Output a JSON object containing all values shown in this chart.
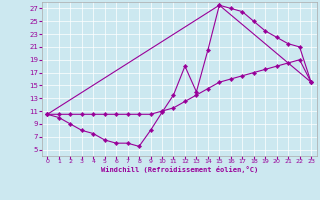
{
  "xlabel": "Windchill (Refroidissement éolien,°C)",
  "bg_color": "#cce8f0",
  "line_color": "#990099",
  "marker": "D",
  "markersize": 2.2,
  "linewidth": 0.8,
  "xlim": [
    -0.5,
    23.5
  ],
  "ylim": [
    4,
    28
  ],
  "xticks": [
    0,
    1,
    2,
    3,
    4,
    5,
    6,
    7,
    8,
    9,
    10,
    11,
    12,
    13,
    14,
    15,
    16,
    17,
    18,
    19,
    20,
    21,
    22,
    23
  ],
  "yticks": [
    5,
    7,
    9,
    11,
    13,
    15,
    17,
    19,
    21,
    23,
    25,
    27
  ],
  "curve1_x": [
    0,
    1,
    2,
    3,
    4,
    5,
    6,
    7,
    8,
    9,
    10,
    11,
    12,
    13,
    14,
    15,
    16,
    17,
    18,
    19,
    20,
    21,
    22,
    23
  ],
  "curve1_y": [
    10.5,
    10.0,
    9.0,
    8.0,
    7.5,
    6.5,
    6.0,
    6.0,
    5.5,
    8.0,
    10.8,
    13.5,
    18.0,
    14.0,
    20.5,
    27.5,
    27.0,
    26.5,
    25.0,
    23.5,
    22.5,
    21.5,
    21.0,
    15.5
  ],
  "curve2_x": [
    0,
    1,
    2,
    3,
    4,
    5,
    6,
    7,
    8,
    9,
    10,
    11,
    12,
    13,
    14,
    15,
    16,
    17,
    18,
    19,
    20,
    21,
    22,
    23
  ],
  "curve2_y": [
    10.5,
    10.5,
    10.5,
    10.5,
    10.5,
    10.5,
    10.5,
    10.5,
    10.5,
    10.5,
    11.0,
    11.5,
    12.5,
    13.5,
    14.5,
    15.5,
    16.0,
    16.5,
    17.0,
    17.5,
    18.0,
    18.5,
    19.0,
    15.5
  ],
  "curve3_x": [
    0,
    15,
    23
  ],
  "curve3_y": [
    10.5,
    27.5,
    15.5
  ]
}
